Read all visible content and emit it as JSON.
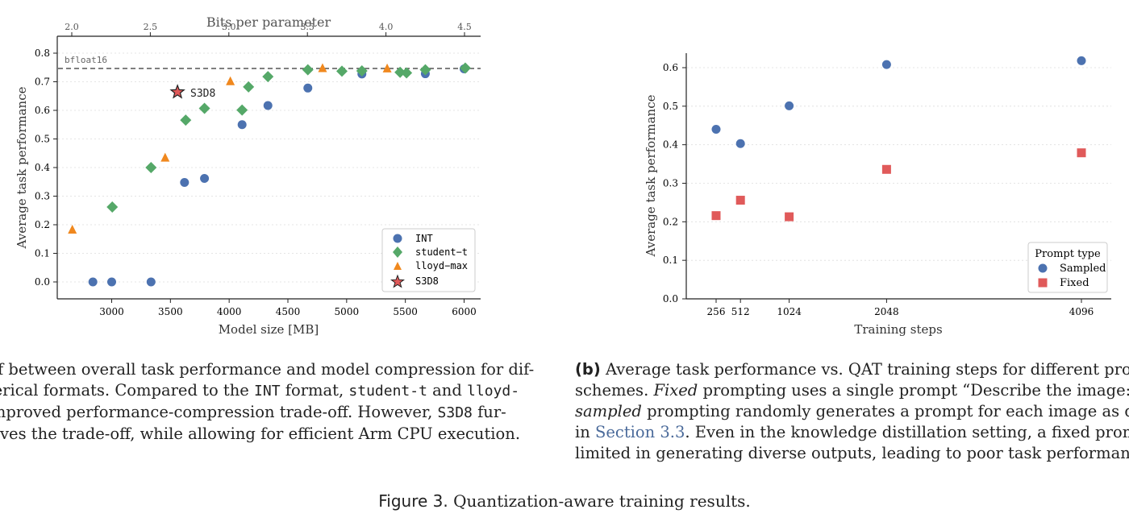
{
  "charts_meta": {
    "left": {
      "xlabel": "Model size [MB]",
      "ylabel": "Average task performance",
      "top_xlabel": "Bits per parameter",
      "xticks": [
        3000,
        3500,
        4000,
        4500,
        5000,
        5500,
        6000
      ],
      "yticks": [
        "0.0",
        "0.1",
        "0.2",
        "0.3",
        "0.4",
        "0.5",
        "0.6",
        "0.7",
        "0.8"
      ],
      "top_xticks": [
        "2.0",
        "2.5",
        "3.0",
        "3.5",
        "4.0",
        "4.5"
      ],
      "bf16_label": "bfloat16",
      "s3d8_annotation": "S3D8",
      "legend": [
        "INT",
        "student−t",
        "lloyd−max",
        "S3D8"
      ]
    },
    "right": {
      "xlabel": "Training steps",
      "ylabel": "Average task performance",
      "xticks": [
        "256",
        "512",
        "1024",
        "2048",
        "4096"
      ],
      "yticks": [
        "0.0",
        "0.1",
        "0.2",
        "0.3",
        "0.4",
        "0.5",
        "0.6"
      ],
      "legend_title": "Prompt type",
      "legend": [
        "Sampled",
        "Fixed"
      ]
    }
  },
  "chart_data": [
    {
      "type": "scatter",
      "xlabel": "Model size [MB]",
      "ylabel": "Average task performance",
      "secondary_xlabel": "Bits per parameter",
      "xlim": [
        2600,
        6150
      ],
      "ylim": [
        -0.06,
        0.81
      ],
      "secondary_xlim": [
        1.92,
        4.57
      ],
      "hline": {
        "y": 0.745,
        "label": "bfloat16",
        "style": "dashed"
      },
      "grid": "y dotted",
      "legend_position": "lower-right",
      "series": [
        {
          "name": "INT",
          "color": "#4c72b0",
          "marker": "circle",
          "points": [
            [
              2840,
              0.0
            ],
            [
              3000,
              0.0
            ],
            [
              3335,
              0.0
            ],
            [
              3620,
              0.348
            ],
            [
              3790,
              0.362
            ],
            [
              4110,
              0.55
            ],
            [
              4330,
              0.617
            ],
            [
              4670,
              0.678
            ],
            [
              5130,
              0.727
            ],
            [
              5670,
              0.728
            ],
            [
              6000,
              0.745
            ]
          ]
        },
        {
          "name": "student−t",
          "color": "#55a868",
          "marker": "diamond",
          "points": [
            [
              3005,
              0.262
            ],
            [
              3335,
              0.4
            ],
            [
              3630,
              0.566
            ],
            [
              3790,
              0.607
            ],
            [
              4110,
              0.601
            ],
            [
              4165,
              0.682
            ],
            [
              4330,
              0.718
            ],
            [
              4670,
              0.742
            ],
            [
              4960,
              0.737
            ],
            [
              5130,
              0.738
            ],
            [
              5455,
              0.733
            ],
            [
              5510,
              0.731
            ],
            [
              5670,
              0.742
            ],
            [
              6010,
              0.748
            ]
          ]
        },
        {
          "name": "lloyd−max",
          "color": "#f0881e",
          "marker": "triangle",
          "points": [
            [
              2665,
              0.183
            ],
            [
              3455,
              0.435
            ],
            [
              4010,
              0.702
            ],
            [
              4795,
              0.748
            ],
            [
              5345,
              0.747
            ]
          ]
        },
        {
          "name": "S3D8",
          "color": "#e05a5a",
          "marker": "star",
          "points": [
            [
              3560,
              0.664
            ]
          ]
        }
      ]
    },
    {
      "type": "scatter",
      "xlabel": "Training steps",
      "ylabel": "Average task performance",
      "ylim": [
        0.0,
        0.64
      ],
      "xlim": [
        0,
        4400
      ],
      "grid": "y dotted",
      "legend_title": "Prompt type",
      "legend_position": "lower-right",
      "series": [
        {
          "name": "Sampled",
          "color": "#4c72b0",
          "marker": "circle",
          "points": [
            [
              256,
              0.44
            ],
            [
              512,
              0.403
            ],
            [
              1024,
              0.501
            ],
            [
              2048,
              0.608
            ],
            [
              4096,
              0.618
            ]
          ]
        },
        {
          "name": "Fixed",
          "color": "#e05a5a",
          "marker": "square",
          "points": [
            [
              256,
              0.216
            ],
            [
              512,
              0.256
            ],
            [
              1024,
              0.213
            ],
            [
              2048,
              0.336
            ],
            [
              4096,
              0.379
            ]
          ]
        }
      ]
    }
  ],
  "caption_a": {
    "l1": "de-off between overall task performance and model compression for dif-",
    "l2a": "numerical formats. Compared to the ",
    "l2b": "INT",
    "l2c": " format, ",
    "l2d": "student-t",
    "l2e": " and ",
    "l2f": "lloyd-",
    "l3a": "ow improved performance-compression trade-off.  However, ",
    "l3b": "S3D8",
    "l3c": " fur-",
    "l4": "mproves the trade-off, while allowing for efficient Arm CPU execution."
  },
  "caption_b": {
    "label": "(b)",
    "l1": " Average task performance vs.  QAT training steps for different prom",
    "l2a": "schemes.  ",
    "l2b": "Fixed",
    "l2c": " prompting uses a single prompt “Describe the image:”",
    "l3a": "sampled",
    "l3b": " prompting randomly generates a prompt for each image as des",
    "l4a": "in ",
    "l4b": "Section 3.3",
    "l4c": ". Even in the knowledge distillation setting, a fixed prompt",
    "l5": "limited in generating diverse outputs, leading to poor task performance."
  },
  "figure_caption": {
    "label": "Figure 3.",
    "text": " Quantization-aware training results."
  }
}
